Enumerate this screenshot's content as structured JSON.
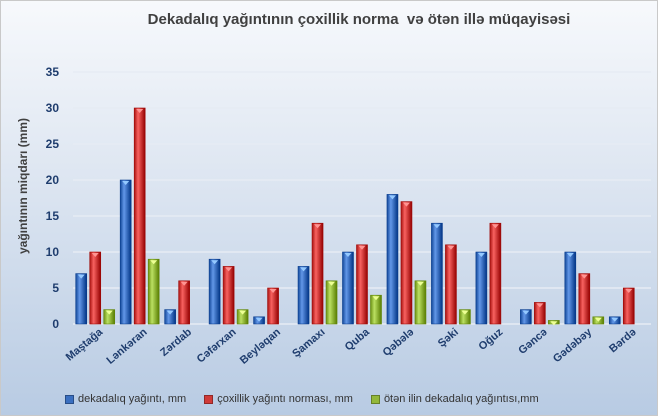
{
  "chart_data": {
    "type": "bar",
    "title": "Dekadalıq yağıntının çoxillik norma  və ötən illə müqayisəsi",
    "xlabel": "",
    "ylabel": "yağıntının miqdarı (mm)",
    "ylim": [
      0,
      35
    ],
    "yticks": [
      0,
      5,
      10,
      15,
      20,
      25,
      30,
      35
    ],
    "grid": true,
    "legend_position": "bottom",
    "categories": [
      "Maştağa",
      "Lənkəran",
      "Zərdab",
      "Cəfərxan",
      "Beyləqan",
      "Şamaxı",
      "Quba",
      "Qəbələ",
      "Şəki",
      "Oğuz",
      "Gəncə",
      "Gədəbəy",
      "Bərdə"
    ],
    "series": [
      {
        "name": "dekadalıq yağıntı, mm",
        "color": "#3a6fc0",
        "values": [
          7,
          20,
          2,
          9,
          1,
          8,
          10,
          18,
          14,
          10,
          2,
          10,
          1
        ]
      },
      {
        "name": "çoxillik yağıntı norması, mm",
        "color": "#d03a38",
        "values": [
          10,
          30,
          6,
          8,
          5,
          14,
          11,
          17,
          11,
          14,
          3,
          7,
          5
        ]
      },
      {
        "name": "ötən ilin dekadalıq yağıntısı,mm",
        "color": "#93b83a",
        "values": [
          2,
          9,
          0,
          2,
          0,
          6,
          4,
          6,
          2,
          0,
          0.5,
          1,
          0
        ]
      }
    ]
  }
}
